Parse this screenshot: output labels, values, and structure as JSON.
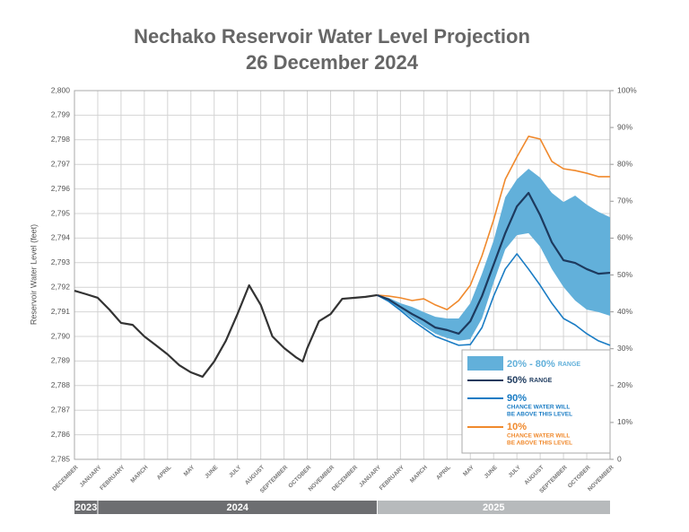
{
  "chart_data": {
    "type": "line",
    "title": "Nechako Reservoir Water Level Projection",
    "subtitle": "26 December 2024",
    "y_label": "Reservoir Water Level (feet)",
    "xlim": [
      0,
      23
    ],
    "xticks": [
      {
        "value": 0,
        "label": "DECEMBER"
      },
      {
        "value": 1,
        "label": "JANUARY"
      },
      {
        "value": 2,
        "label": "FEBRUARY"
      },
      {
        "value": 3,
        "label": "MARCH"
      },
      {
        "value": 4,
        "label": "APRIL"
      },
      {
        "value": 5,
        "label": "MAY"
      },
      {
        "value": 6,
        "label": "JUNE"
      },
      {
        "value": 7,
        "label": "JULY"
      },
      {
        "value": 8,
        "label": "AUGUST"
      },
      {
        "value": 9,
        "label": "SEPTEMBER"
      },
      {
        "value": 10,
        "label": "OCTOBER"
      },
      {
        "value": 11,
        "label": "NOVEMBER"
      },
      {
        "value": 12,
        "label": "DECEMBER"
      },
      {
        "value": 13,
        "label": "JANUARY"
      },
      {
        "value": 14,
        "label": "FEBRUARY"
      },
      {
        "value": 15,
        "label": "MARCH"
      },
      {
        "value": 16,
        "label": "APRIL"
      },
      {
        "value": 17,
        "label": "MAY"
      },
      {
        "value": 18,
        "label": "JUNE"
      },
      {
        "value": 19,
        "label": "JULY"
      },
      {
        "value": 20,
        "label": "AUGUST"
      },
      {
        "value": 21,
        "label": "SEPTEMBER"
      },
      {
        "value": 22,
        "label": "OCTOBER"
      },
      {
        "value": 23,
        "label": "NOVEMBER"
      }
    ],
    "ylim": [
      2785,
      2800
    ],
    "yticks": [
      {
        "value": 2785,
        "label": "2,785"
      },
      {
        "value": 2786,
        "label": "2,786"
      },
      {
        "value": 2787,
        "label": "2,787"
      },
      {
        "value": 2788,
        "label": "2,788"
      },
      {
        "value": 2789,
        "label": "2,789"
      },
      {
        "value": 2790,
        "label": "2,790"
      },
      {
        "value": 2791,
        "label": "2,791"
      },
      {
        "value": 2792,
        "label": "2,792"
      },
      {
        "value": 2793,
        "label": "2,793"
      },
      {
        "value": 2794,
        "label": "2,794"
      },
      {
        "value": 2795,
        "label": "2,795"
      },
      {
        "value": 2796,
        "label": "2,796"
      },
      {
        "value": 2797,
        "label": "2,797"
      },
      {
        "value": 2798,
        "label": "2,798"
      },
      {
        "value": 2799,
        "label": "2,799"
      },
      {
        "value": 2800,
        "label": "2,800"
      }
    ],
    "y2lim": [
      0,
      100
    ],
    "y2ticks": [
      0,
      {
        "value": 10,
        "label": "10%"
      },
      {
        "value": 20,
        "label": "20%"
      },
      {
        "value": 30,
        "label": "30%"
      },
      {
        "value": 40,
        "label": "40%"
      },
      {
        "value": 50,
        "label": "50%"
      },
      {
        "value": 60,
        "label": "60%"
      },
      {
        "value": 70,
        "label": "70%"
      },
      {
        "value": 80,
        "label": "80%"
      },
      {
        "value": 90,
        "label": "90%"
      },
      {
        "value": 100,
        "label": "100%"
      }
    ],
    "grid": true,
    "legend": "bottom-right",
    "year_labels": [
      "2023",
      "2024",
      "2025"
    ],
    "band": {
      "name": "20% - 80%",
      "note": "RANGE",
      "color": "#62b0da",
      "x": [
        13,
        13.5,
        14,
        14.5,
        15,
        15.5,
        16,
        16.5,
        17,
        17.5,
        18,
        18.5,
        19,
        19.5,
        20,
        20.5,
        21,
        21.5,
        22,
        22.5,
        23
      ],
      "upper": [
        2791.68,
        2791.57,
        2791.35,
        2791.2,
        2790.99,
        2790.8,
        2790.73,
        2790.73,
        2791.35,
        2792.55,
        2793.9,
        2795.66,
        2796.39,
        2796.82,
        2796.46,
        2795.84,
        2795.47,
        2795.73,
        2795.36,
        2795.07,
        2794.85
      ],
      "lower": [
        2791.68,
        2791.42,
        2791.09,
        2790.73,
        2790.4,
        2790.11,
        2789.93,
        2789.82,
        2789.89,
        2790.73,
        2792.19,
        2793.54,
        2794.12,
        2794.2,
        2793.65,
        2792.74,
        2792.01,
        2791.46,
        2791.09,
        2790.99,
        2790.84
      ]
    },
    "series": [
      {
        "color": "#333333",
        "x": [
          0,
          0.5,
          1,
          1.5,
          2,
          2.5,
          3,
          3.5,
          4,
          4.5,
          5,
          5.5,
          6,
          6.5,
          7,
          7.5,
          8,
          8.5,
          9,
          9.5,
          9.8,
          10,
          10.5,
          11,
          11.5,
          12,
          12.5,
          13
        ],
        "values": [
          2791.86,
          2791.72,
          2791.57,
          2791.09,
          2790.55,
          2790.47,
          2790.0,
          2789.64,
          2789.27,
          2788.83,
          2788.54,
          2788.36,
          2788.98,
          2789.82,
          2790.91,
          2792.08,
          2791.28,
          2790.0,
          2789.53,
          2789.16,
          2788.98,
          2789.53,
          2790.62,
          2790.91,
          2791.53,
          2791.57,
          2791.61,
          2791.68
        ]
      },
      {
        "name": "50%",
        "note": "RANGE",
        "color": "#1d3a5e",
        "x": [
          13,
          13.5,
          14,
          14.5,
          15,
          15.5,
          16,
          16.5,
          17,
          17.5,
          18,
          18.5,
          19,
          19.5,
          20,
          20.5,
          21,
          21.5,
          22,
          22.5,
          23
        ],
        "values": [
          2791.68,
          2791.5,
          2791.2,
          2790.91,
          2790.66,
          2790.36,
          2790.26,
          2790.11,
          2790.62,
          2791.64,
          2792.92,
          2794.2,
          2795.29,
          2795.84,
          2794.93,
          2793.83,
          2793.1,
          2792.99,
          2792.74,
          2792.55,
          2792.59
        ]
      },
      {
        "name": "90%",
        "note": [
          "CHANCE WATER WILL",
          "BE ABOVE THIS LEVEL"
        ],
        "color": "#1a7cc4",
        "x": [
          13,
          13.5,
          14,
          14.5,
          15,
          15.5,
          16,
          16.5,
          17,
          17.5,
          18,
          18.5,
          19,
          19.5,
          20,
          20.5,
          21,
          21.5,
          22,
          22.5,
          23
        ],
        "values": [
          2791.68,
          2791.42,
          2791.06,
          2790.66,
          2790.33,
          2790.0,
          2789.82,
          2789.64,
          2789.67,
          2790.36,
          2791.64,
          2792.74,
          2793.36,
          2792.74,
          2792.08,
          2791.35,
          2790.73,
          2790.47,
          2790.11,
          2789.82,
          2789.64
        ]
      },
      {
        "name": "10%",
        "note": [
          "CHANCE WATER WILL",
          "BE ABOVE THIS LEVEL"
        ],
        "color": "#f0892c",
        "x": [
          13,
          13.5,
          14,
          14.5,
          15,
          15.5,
          16,
          16.5,
          17,
          17.5,
          18,
          18.5,
          19,
          19.5,
          20,
          20.5,
          21,
          21.5,
          22,
          22.5,
          23
        ],
        "values": [
          2791.68,
          2791.64,
          2791.57,
          2791.46,
          2791.53,
          2791.28,
          2791.09,
          2791.46,
          2792.08,
          2793.28,
          2794.74,
          2796.39,
          2797.3,
          2798.14,
          2798.03,
          2797.12,
          2796.82,
          2796.75,
          2796.64,
          2796.5,
          2796.5
        ]
      }
    ]
  }
}
